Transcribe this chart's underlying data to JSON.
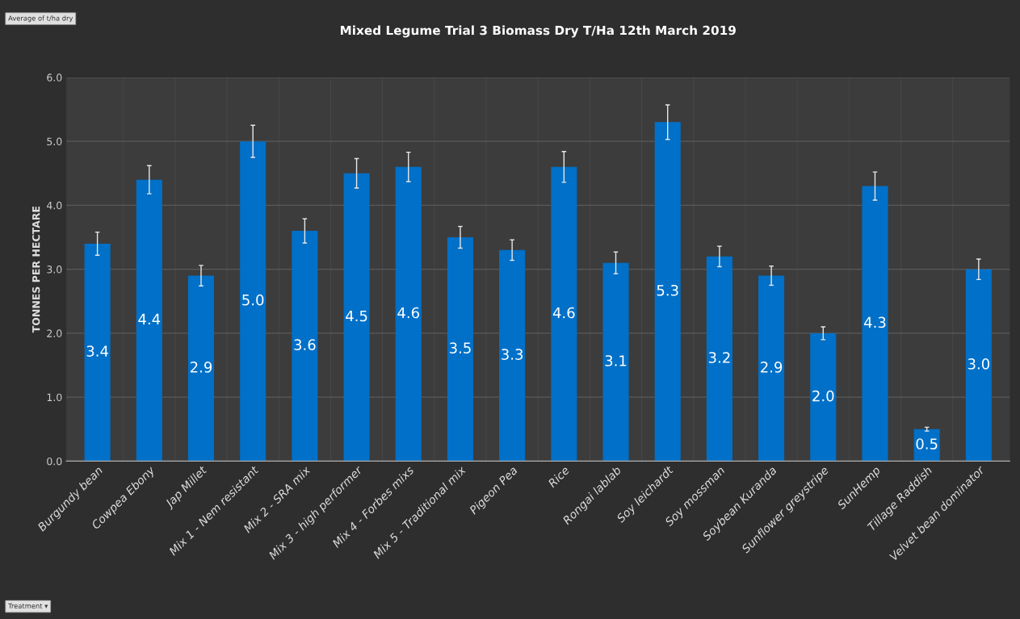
{
  "chart_data": {
    "type": "bar",
    "title": "Mixed Legume Trial 3 Biomass Dry T/Ha 12th March 2019",
    "ylabel": "TONNES PER HECTARE",
    "categories": [
      "Burgundy bean",
      "Cowpea Ebony",
      "Jap Millet",
      "Mix 1 - Nem resistant",
      "Mix 2 - SRA mix",
      "Mix 3 - high performer",
      "Mix 4 - Forbes mixs",
      "Mix 5 - Traditional mix",
      "Pigeon Pea",
      "Rice",
      "Rongai lablab",
      "Soy leichardt",
      "Soy mossman",
      "Soybean Kuranda",
      "Sunflower greystripe",
      "SunHemp",
      "Tillage Raddish",
      "Velvet bean dominator"
    ],
    "values": [
      3.4,
      4.4,
      2.9,
      5.0,
      3.6,
      4.5,
      4.6,
      3.5,
      3.3,
      4.6,
      3.1,
      5.3,
      3.2,
      2.9,
      2.0,
      4.3,
      0.5,
      3.0
    ],
    "errors": [
      0.18,
      0.22,
      0.16,
      0.25,
      0.19,
      0.23,
      0.23,
      0.17,
      0.16,
      0.24,
      0.17,
      0.27,
      0.16,
      0.15,
      0.1,
      0.22,
      0.03,
      0.16
    ],
    "value_labels": [
      "3.4",
      "4.4",
      "2.9",
      "5.0",
      "3.6",
      "4.5",
      "4.6",
      "3.5",
      "3.3",
      "4.6",
      "3.1",
      "5.3",
      "3.2",
      "2.9",
      "2.0",
      "4.3",
      "0.5",
      "3.0"
    ],
    "color": "#0070c8",
    "grid": true,
    "ylim": [
      0,
      6.0
    ],
    "yticks": [
      {
        "value": 0,
        "label": "0.0"
      },
      {
        "value": 1,
        "label": "1.0"
      },
      {
        "value": 2,
        "label": "2.0"
      },
      {
        "value": 3,
        "label": "3.0"
      },
      {
        "value": 4,
        "label": "4.0"
      },
      {
        "value": 5,
        "label": "5.0"
      },
      {
        "value": 6,
        "label": "6.0"
      }
    ],
    "annotations": [
      "Average of t/ha dry",
      "Treatment ▾"
    ]
  }
}
